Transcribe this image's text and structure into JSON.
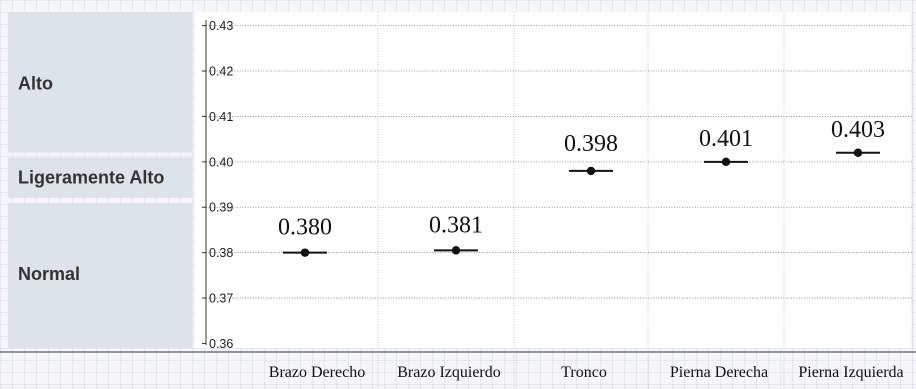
{
  "chart_data": {
    "type": "scatter",
    "title": "",
    "xlabel": "",
    "ylabel": "",
    "ylim": [
      0.359,
      0.433
    ],
    "yticks": [
      0.36,
      0.37,
      0.38,
      0.39,
      0.4,
      0.41,
      0.42,
      0.43
    ],
    "ytick_labels": [
      "0.36",
      "0.37",
      "0.38",
      "0.39",
      "0.40",
      "0.41",
      "0.42",
      "0.43"
    ],
    "categories": [
      "Brazo Derecho",
      "Brazo Izquierdo",
      "Tronco",
      "Pierna Derecha",
      "Pierna Izquierda"
    ],
    "values": [
      0.38,
      0.381,
      0.398,
      0.401,
      0.403
    ],
    "value_labels": [
      "0.380",
      "0.381",
      "0.398",
      "0.401",
      "0.403"
    ],
    "marker_values": [
      0.38,
      0.3805,
      0.398,
      0.4,
      0.402
    ],
    "bands": [
      {
        "label": "Alto",
        "from": 0.4015,
        "to": 0.433
      },
      {
        "label": "Ligeramente Alto",
        "from": 0.3915,
        "to": 0.4015
      },
      {
        "label": "Normal",
        "from": 0.359,
        "to": 0.3915
      }
    ],
    "colors": {
      "band_fill": "#dce3ea",
      "band_text": "#333333",
      "marker": "#111111"
    },
    "grid": true
  }
}
